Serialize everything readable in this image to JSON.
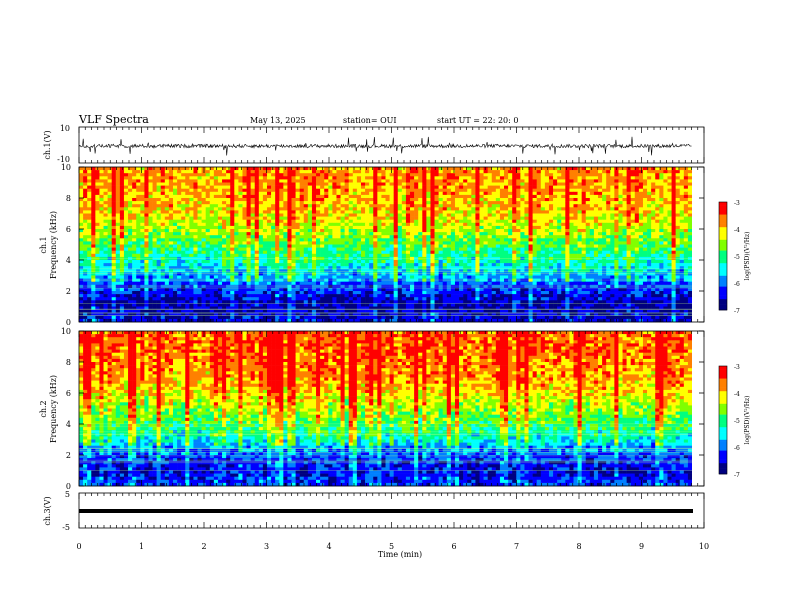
{
  "header": {
    "title": "VLF Spectra",
    "date": "May 13, 2025",
    "station": "station= OUI",
    "start": "start  UT =   22: 20: 0"
  },
  "colors": {
    "spectrum": [
      "#000080",
      "#0000ff",
      "#0080ff",
      "#00ffff",
      "#00ff80",
      "#80ff00",
      "#ffff00",
      "#ff8000",
      "#ff0000"
    ],
    "axis": "#000000",
    "background": "#ffffff"
  },
  "chart_data": [
    {
      "type": "line",
      "panel": "ch1-waveform",
      "ylabel": "ch.1(V)",
      "ylim": [
        -10,
        10
      ],
      "yticks": [
        "10",
        "-10"
      ],
      "xlim": [
        0,
        10
      ],
      "baseline": 0,
      "series": [
        {
          "values_description_level": 0
        }
      ]
    },
    {
      "type": "heatmap",
      "panel": "ch1-spectrogram",
      "ylabel": "ch.1\nFrequency (kHz)",
      "ylabel_line1": "ch.1",
      "ylabel_line2": "Frequency (kHz)",
      "ylim": [
        0,
        10
      ],
      "yticks": [
        "0",
        "2",
        "4",
        "6",
        "8",
        "10"
      ],
      "xlim": [
        0,
        10
      ],
      "colorbar": {
        "label": "log(PSD)(V²/Hz)",
        "range": [
          -7,
          -3
        ],
        "ticks": [
          "-3",
          "-4",
          "-5",
          "-6",
          "-7"
        ]
      },
      "frequency_profile": [
        {
          "freq": 0.0,
          "level": -6.6
        },
        {
          "freq": 1.0,
          "level": -6.8
        },
        {
          "freq": 2.0,
          "level": -6.4
        },
        {
          "freq": 3.0,
          "level": -5.9
        },
        {
          "freq": 4.0,
          "level": -5.4
        },
        {
          "freq": 5.0,
          "level": -5.0
        },
        {
          "freq": 6.0,
          "level": -4.6
        },
        {
          "freq": 7.0,
          "level": -4.3
        },
        {
          "freq": 8.0,
          "level": -4.1
        },
        {
          "freq": 9.0,
          "level": -4.0
        },
        {
          "freq": 10.0,
          "level": -4.0
        }
      ]
    },
    {
      "type": "heatmap",
      "panel": "ch2-spectrogram",
      "ylabel_line1": "ch.2",
      "ylabel_line2": "Frequency (kHz)",
      "ylim": [
        0,
        10
      ],
      "yticks": [
        "0",
        "2",
        "4",
        "6",
        "8",
        "10"
      ],
      "xlim": [
        0,
        10
      ],
      "colorbar": {
        "label": "log(PSD)(V²/Hz)",
        "range": [
          -7,
          -3
        ],
        "ticks": [
          "-3",
          "-4",
          "-5",
          "-6",
          "-7"
        ]
      },
      "frequency_profile": [
        {
          "freq": 0.0,
          "level": -6.3
        },
        {
          "freq": 1.0,
          "level": -6.6
        },
        {
          "freq": 2.0,
          "level": -6.2
        },
        {
          "freq": 3.0,
          "level": -5.6
        },
        {
          "freq": 4.0,
          "level": -5.1
        },
        {
          "freq": 5.0,
          "level": -4.7
        },
        {
          "freq": 6.0,
          "level": -4.3
        },
        {
          "freq": 7.0,
          "level": -4.0
        },
        {
          "freq": 8.0,
          "level": -3.9
        },
        {
          "freq": 9.0,
          "level": -3.8
        },
        {
          "freq": 10.0,
          "level": -3.8
        }
      ]
    },
    {
      "type": "line",
      "panel": "ch3-waveform",
      "ylabel": "ch.3(V)",
      "ylim": [
        -5,
        5
      ],
      "yticks": [
        "5",
        "-5"
      ],
      "xlim": [
        0,
        10
      ],
      "series": [
        {
          "level": -1
        }
      ]
    }
  ],
  "xaxis": {
    "label": "Time  (min)",
    "ticks": [
      "0",
      "1",
      "2",
      "3",
      "4",
      "5",
      "6",
      "7",
      "8",
      "9",
      "10"
    ],
    "range": [
      0,
      10
    ]
  }
}
